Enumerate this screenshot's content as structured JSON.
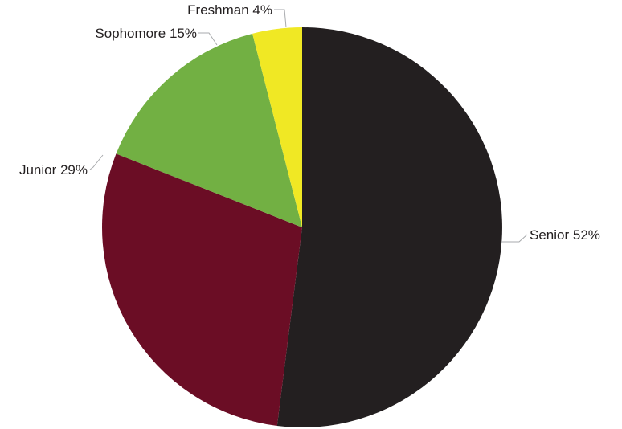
{
  "chart_data": {
    "type": "pie",
    "title": "",
    "start_angle_deg": 0,
    "direction": "clockwise",
    "slices": [
      {
        "label": "Senior 52%",
        "value": 52,
        "color": "#231f20"
      },
      {
        "label": "Junior 29%",
        "value": 29,
        "color": "#6b0d25"
      },
      {
        "label": "Sophomore 15%",
        "value": 15,
        "color": "#72b043"
      },
      {
        "label": "Freshman 4%",
        "value": 4,
        "color": "#f0e824"
      }
    ]
  }
}
